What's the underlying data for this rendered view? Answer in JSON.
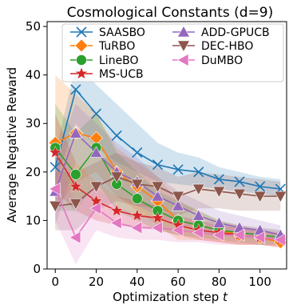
{
  "chart_data": {
    "type": "line",
    "title": "Cosmological Constants (d=9)",
    "xlabel": "Optimization step",
    "xlabel_var": "t",
    "ylabel": "Average Negative Reward",
    "xlim": [
      -4,
      113
    ],
    "ylim": [
      0,
      51
    ],
    "xticks": [
      0,
      20,
      40,
      60,
      80,
      100
    ],
    "yticks": [
      0,
      10,
      20,
      30,
      40,
      50
    ],
    "grid": false,
    "legend_position": "top-right",
    "x": [
      0,
      10,
      20,
      30,
      40,
      50,
      60,
      70,
      80,
      90,
      100,
      110
    ],
    "series": [
      {
        "name": "SAASBO",
        "color": "#1f77b4",
        "marker": "x",
        "values": [
          21,
          37,
          32,
          27.5,
          24,
          21.5,
          20.5,
          20,
          18.5,
          18,
          17,
          16.5
        ],
        "lower": [
          18,
          30,
          25,
          22,
          20,
          18,
          17.5,
          17,
          16.5,
          16,
          15.5,
          15
        ],
        "upper": [
          24,
          42,
          38,
          34,
          30,
          26,
          24,
          23,
          21,
          20,
          19,
          18.5
        ]
      },
      {
        "name": "TuRBO",
        "color": "#ff7f0e",
        "marker": "D",
        "values": [
          26,
          28,
          27,
          20,
          17,
          14,
          10,
          9,
          8,
          7,
          6.5,
          5.5
        ],
        "lower": [
          12,
          18,
          20,
          15,
          12,
          9,
          6,
          6,
          5.5,
          5,
          5,
          4.5
        ],
        "upper": [
          40,
          36,
          32,
          25,
          22,
          19,
          14,
          12,
          10,
          9,
          8,
          7
        ]
      },
      {
        "name": "LineBO",
        "color": "#2ca02c",
        "marker": "o",
        "values": [
          25,
          19.5,
          25,
          17.5,
          14.5,
          12,
          10,
          9,
          8,
          7.5,
          7,
          6.5
        ],
        "lower": [
          12,
          12,
          18,
          12,
          10,
          8,
          7,
          6.5,
          6,
          5.5,
          5,
          5
        ],
        "upper": [
          34,
          28,
          32,
          24,
          20,
          16,
          14,
          12,
          10,
          9,
          8.5,
          8
        ]
      },
      {
        "name": "MS-UCB",
        "color": "#d62728",
        "marker": "*",
        "values": [
          24,
          17,
          14,
          12,
          11,
          10.5,
          9,
          8,
          7.5,
          7,
          6.5,
          6
        ],
        "lower": [
          16,
          12,
          10,
          9,
          8.5,
          8,
          7,
          6,
          5.5,
          5,
          5,
          4.5
        ],
        "upper": [
          32,
          22,
          18,
          15,
          14,
          13,
          11,
          10,
          9,
          8.5,
          8,
          7.5
        ]
      },
      {
        "name": "ADD-GPUCB",
        "color": "#9467bd",
        "marker": "^",
        "values": [
          16,
          28,
          24,
          20,
          18,
          15,
          13,
          11,
          9.5,
          8.5,
          8,
          7
        ],
        "lower": [
          9,
          22,
          18,
          15,
          13,
          11,
          9.5,
          8,
          7,
          6.5,
          6,
          5.5
        ],
        "upper": [
          23,
          34,
          30,
          26,
          23,
          19,
          16,
          14,
          12,
          11,
          10,
          9
        ]
      },
      {
        "name": "DEC-HBO",
        "color": "#8c564b",
        "marker": "v",
        "values": [
          13,
          13.5,
          17,
          19,
          17.5,
          17,
          15,
          16.5,
          16,
          15.5,
          15,
          15
        ],
        "lower": [
          8,
          8,
          12,
          14,
          13,
          12.5,
          11,
          12.5,
          12.5,
          12,
          12,
          12
        ],
        "upper": [
          20,
          20,
          22,
          24,
          22,
          21,
          19,
          20,
          19.5,
          19,
          18.5,
          18
        ]
      },
      {
        "name": "DuMBO",
        "color": "#e377c2",
        "marker": "<",
        "values": [
          16.5,
          6.5,
          12.5,
          9.5,
          8.5,
          8.5,
          8,
          7.5,
          7,
          7,
          6.5,
          6
        ],
        "lower": [
          10,
          1,
          8,
          6.5,
          6,
          6,
          5.5,
          5.5,
          5,
          5,
          5,
          4.5
        ],
        "upper": [
          22,
          14,
          17,
          13,
          11,
          11,
          10.5,
          10,
          9.5,
          9,
          8.5,
          8
        ]
      }
    ]
  }
}
